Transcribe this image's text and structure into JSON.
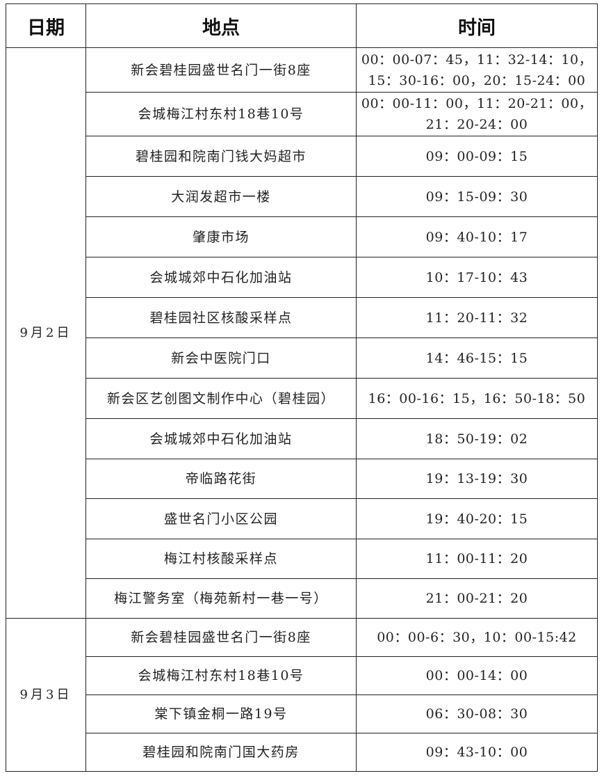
{
  "headers": [
    "日期",
    "地点",
    "时间"
  ],
  "groups": [
    {
      "date": "9月2日",
      "rows": [
        {
          "place": "新会碧桂园盛世名门一街8座",
          "time": "00：00-07：45，11：32-14：10，15：30-16：00，20：15-24：00"
        },
        {
          "place": "会城梅江村东村18巷10号",
          "time": "00：00-11：00，11：20-21：00，21：20-24：00"
        },
        {
          "place": "碧桂园和院南门钱大妈超市",
          "time": "09：00-09：15"
        },
        {
          "place": "大润发超市一楼",
          "time": "09：15-09：30"
        },
        {
          "place": "肇康市场",
          "time": "09：40-10：17"
        },
        {
          "place": "会城城郊中石化加油站",
          "time": "10：17-10：43"
        },
        {
          "place": "碧桂园社区核酸采样点",
          "time": "11：20-11：32"
        },
        {
          "place": "新会中医院门口",
          "time": "14：46-15：15"
        },
        {
          "place": "新会区艺创图文制作中心（碧桂园）",
          "time": "16：00-16：15，16：50-18：50"
        },
        {
          "place": "会城城郊中石化加油站",
          "time": "18：50-19：02"
        },
        {
          "place": "帝临路花街",
          "time": "19：13-19：30"
        },
        {
          "place": "盛世名门小区公园",
          "time": "19：40-20：15"
        },
        {
          "place": "梅江村核酸采样点",
          "time": "11：00-11：20"
        },
        {
          "place": "梅江警务室（梅苑新村一巷一号）",
          "time": "21：00-21：20"
        }
      ]
    },
    {
      "date": "9月3日",
      "rows": [
        {
          "place": "新会碧桂园盛世名门一街8座",
          "time": "00：00-6：30，10：00-15:42"
        },
        {
          "place": "会城梅江村东村18巷10号",
          "time": "00：00-14：00"
        },
        {
          "place": "棠下镇金桐一路19号",
          "time": "06：30-08：30"
        },
        {
          "place": "碧桂园和院南门国大药房",
          "time": "09：43-10：00"
        }
      ]
    }
  ]
}
